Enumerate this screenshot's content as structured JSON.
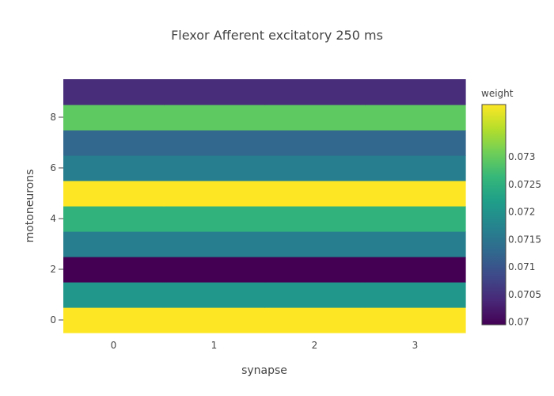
{
  "chart_data": {
    "type": "heatmap",
    "title": "Flexor Afferent excitatory 250 ms",
    "xlabel": "synapse",
    "ylabel": "motoneurons",
    "x": [
      0,
      1,
      2,
      3
    ],
    "y": [
      0,
      1,
      2,
      3,
      4,
      5,
      6,
      7,
      8,
      9
    ],
    "x_ticks": [
      "0",
      "1",
      "2",
      "3"
    ],
    "y_ticks": [
      "0",
      "2",
      "4",
      "6",
      "8"
    ],
    "z": [
      [
        0.07395,
        0.07395,
        0.07395,
        0.07395
      ],
      [
        0.07205,
        0.07205,
        0.07205,
        0.07205
      ],
      [
        0.06995,
        0.06995,
        0.06995,
        0.06995
      ],
      [
        0.07165,
        0.07165,
        0.07165,
        0.07165
      ],
      [
        0.07255,
        0.07255,
        0.07255,
        0.07255
      ],
      [
        0.07395,
        0.07395,
        0.07395,
        0.07395
      ],
      [
        0.07165,
        0.07165,
        0.07165,
        0.07165
      ],
      [
        0.07125,
        0.07125,
        0.07125,
        0.07125
      ],
      [
        0.07295,
        0.07295,
        0.07295,
        0.07295
      ],
      [
        0.07045,
        0.07045,
        0.07045,
        0.07045
      ]
    ],
    "colorscale": "Viridis",
    "zmin": 0.06995,
    "zmax": 0.07395,
    "colorbar": {
      "title": "weight",
      "ticks": [
        "0.07",
        "0.0705",
        "0.071",
        "0.0715",
        "0.072",
        "0.0725",
        "0.073"
      ],
      "tick_values": [
        0.07,
        0.0705,
        0.071,
        0.0715,
        0.072,
        0.0725,
        0.073
      ]
    },
    "grid": false,
    "legend": "none"
  }
}
